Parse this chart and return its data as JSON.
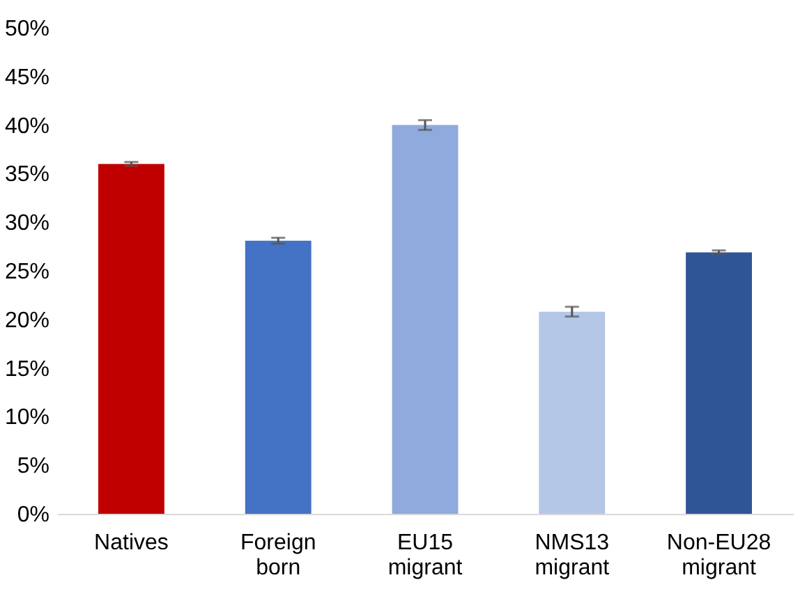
{
  "chart_data": {
    "type": "bar",
    "categories": [
      "Natives",
      "Foreign born",
      "EU15 migrant",
      "NMS13 migrant",
      "Non-EU28 migrant"
    ],
    "values": [
      36.0,
      28.1,
      40.0,
      20.8,
      26.9
    ],
    "colors": [
      "#c00000",
      "#4472c4",
      "#8faadc",
      "#b4c7e7",
      "#2f5597"
    ],
    "errors": [
      0.2,
      0.3,
      0.5,
      0.5,
      0.2
    ],
    "ylim": [
      0,
      50
    ],
    "yticks": [
      {
        "value": 0,
        "label": "0%"
      },
      {
        "value": 5,
        "label": "5%"
      },
      {
        "value": 10,
        "label": "10%"
      },
      {
        "value": 15,
        "label": "15%"
      },
      {
        "value": 20,
        "label": "20%"
      },
      {
        "value": 25,
        "label": "25%"
      },
      {
        "value": 30,
        "label": "30%"
      },
      {
        "value": 35,
        "label": "35%"
      },
      {
        "value": 40,
        "label": "40%"
      },
      {
        "value": 45,
        "label": "45%"
      },
      {
        "value": 50,
        "label": "50%"
      }
    ],
    "grid": false
  }
}
